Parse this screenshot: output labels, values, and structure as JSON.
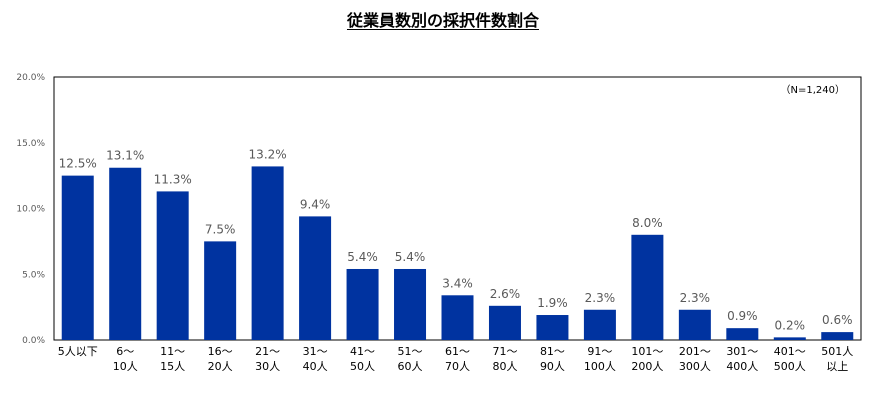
{
  "chart_data": {
    "type": "bar",
    "title": "従業員数別の採択件数割合",
    "note": "（N=1,240）",
    "categories": [
      [
        "5人以下"
      ],
      [
        "6～",
        "10人"
      ],
      [
        "11～",
        "15人"
      ],
      [
        "16～",
        "20人"
      ],
      [
        "21～",
        "30人"
      ],
      [
        "31～",
        "40人"
      ],
      [
        "41～",
        "50人"
      ],
      [
        "51～",
        "60人"
      ],
      [
        "61～",
        "70人"
      ],
      [
        "71～",
        "80人"
      ],
      [
        "81～",
        "90人"
      ],
      [
        "91～",
        "100人"
      ],
      [
        "101～",
        "200人"
      ],
      [
        "201～",
        "300人"
      ],
      [
        "301～",
        "400人"
      ],
      [
        "401～",
        "500人"
      ],
      [
        "501人",
        "以上"
      ]
    ],
    "values": [
      12.5,
      13.1,
      11.3,
      7.5,
      13.2,
      9.4,
      5.4,
      5.4,
      3.4,
      2.6,
      1.9,
      2.3,
      8.0,
      2.3,
      0.9,
      0.2,
      0.6
    ],
    "value_labels": [
      "12.5%",
      "13.1%",
      "11.3%",
      "7.5%",
      "13.2%",
      "9.4%",
      "5.4%",
      "5.4%",
      "3.4%",
      "2.6%",
      "1.9%",
      "2.3%",
      "8.0%",
      "2.3%",
      "0.9%",
      "0.2%",
      "0.6%"
    ],
    "yticks": [
      "0.0%",
      "5.0%",
      "10.0%",
      "15.0%",
      "20.0%"
    ],
    "ylim": [
      0,
      20
    ],
    "grid": false,
    "legend": "none",
    "bar_color": "#0033A0",
    "axis_color": "#000000"
  }
}
